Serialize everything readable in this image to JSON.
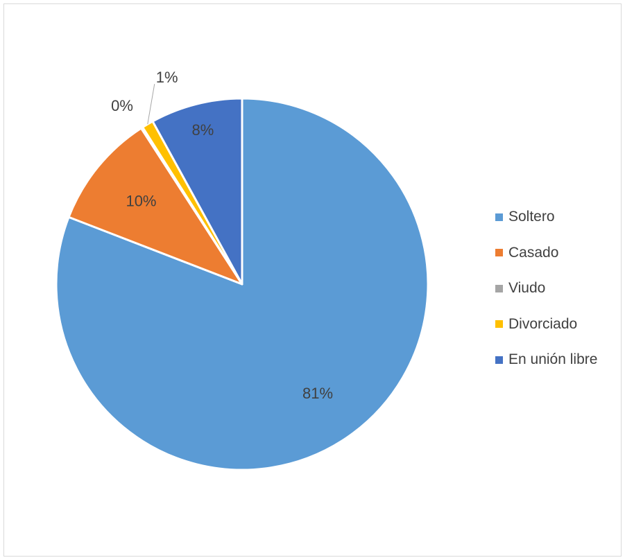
{
  "chart_data": {
    "type": "pie",
    "title": "",
    "categories": [
      "Soltero",
      "Casado",
      "Viudo",
      "Divorciado",
      "En unión libre"
    ],
    "values": [
      81,
      10,
      0,
      1,
      8
    ],
    "labels": [
      "81%",
      "10%",
      "0%",
      "1%",
      "8%"
    ],
    "colors": [
      "#5B9BD5",
      "#ED7D31",
      "#A5A5A5",
      "#FFC000",
      "#4472C4"
    ],
    "legend_position": "right",
    "start_angle": "12 o'clock",
    "direction": "clockwise"
  }
}
